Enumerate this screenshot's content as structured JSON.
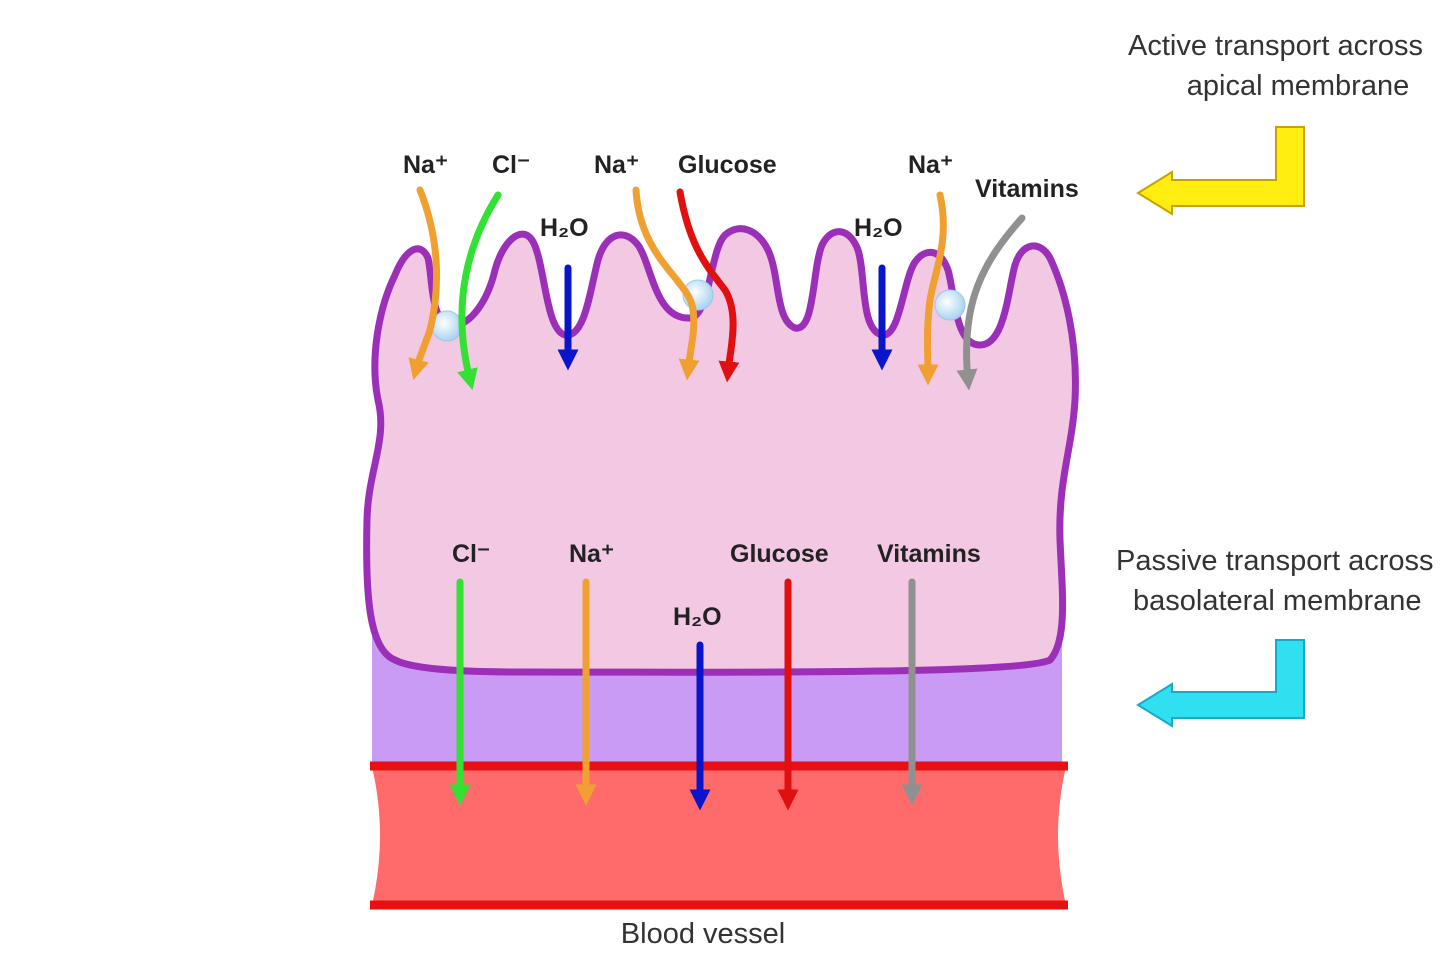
{
  "apical_labels": {
    "na1": "Na⁺",
    "cl": "Cl⁻",
    "na2": "Na⁺",
    "glucose": "Glucose",
    "na3": "Na⁺",
    "vitamins": "Vitamins",
    "h2o1": "H₂O",
    "h2o2": "H₂O"
  },
  "basolateral_labels": {
    "cl": "Cl⁻",
    "na": "Na⁺",
    "h2o": "H₂O",
    "glucose": "Glucose",
    "vitamins": "Vitamins"
  },
  "side_notes": {
    "active_line1": "Active transport across",
    "active_line2": "apical membrane",
    "passive_line1": "Passive transport across",
    "passive_line2": "basolateral membrane"
  },
  "vessel_label": "Blood vessel",
  "colors": {
    "membrane": "#9b2fb8",
    "cytoplasm": "#f3c8e3",
    "basement": "#c99bf5",
    "vessel": "#ff6b6b",
    "vessel_wall": "#e81010",
    "na": "#f0a030",
    "cl": "#33e033",
    "h2o": "#0a14c8",
    "glucose": "#e01010",
    "vitamins": "#909090",
    "active_arrow": "#ffee10",
    "passive_arrow": "#30e0f0"
  }
}
